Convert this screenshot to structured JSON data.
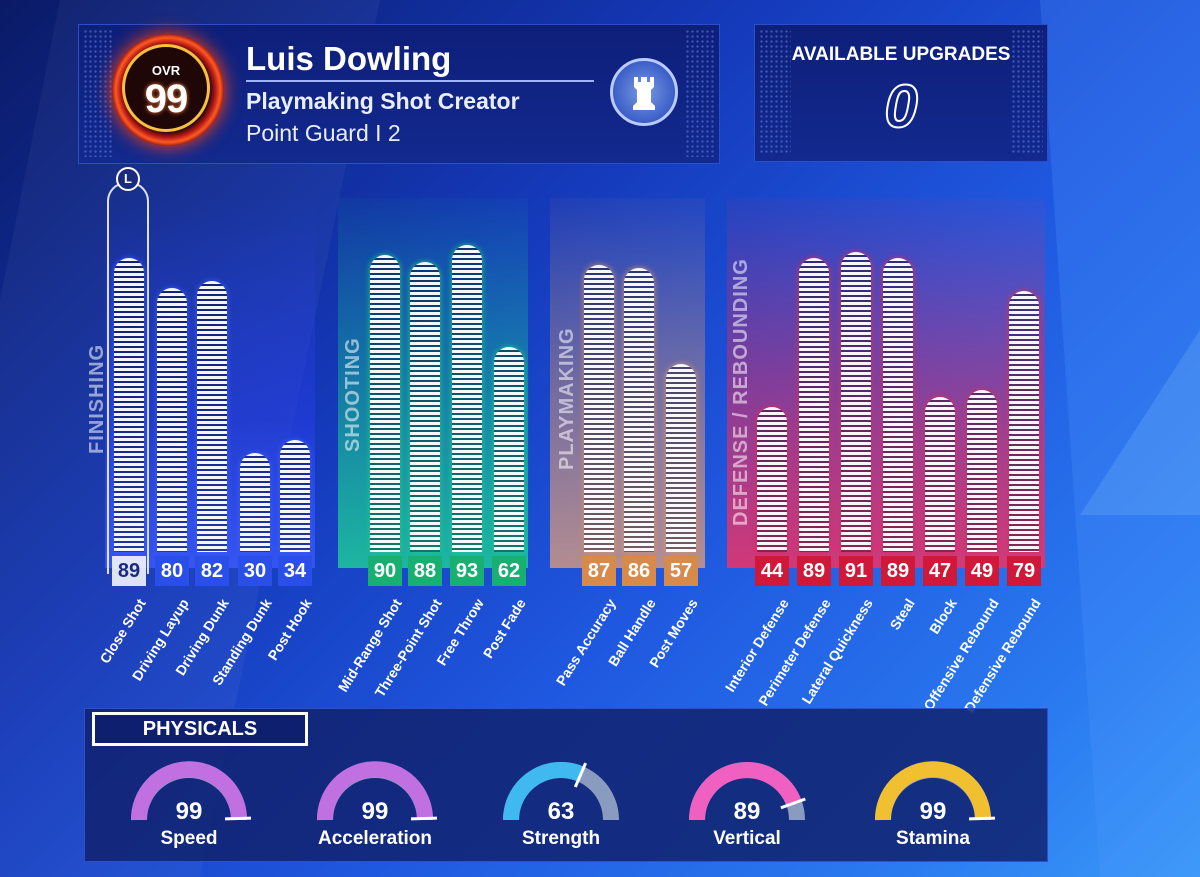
{
  "player": {
    "ovr_label": "OVR",
    "ovr": "99",
    "name": "Luis Dowling",
    "archetype": "Playmaking Shot Creator",
    "position": "Point Guard  I  2",
    "badge_icon": "rook-chess-icon"
  },
  "upgrades": {
    "title": "AVAILABLE UPGRADES",
    "value": "0"
  },
  "categories": [
    {
      "name": "FINISHING",
      "color": "#3a5cff",
      "value_color": "#2a4fe8",
      "attributes": [
        {
          "name": "Close Shot",
          "value": 89
        },
        {
          "name": "Driving Layup",
          "value": 80
        },
        {
          "name": "Driving Dunk",
          "value": 82
        },
        {
          "name": "Standing Dunk",
          "value": 30
        },
        {
          "name": "Post Hook",
          "value": 34
        }
      ]
    },
    {
      "name": "SHOOTING",
      "color": "#1ec88a",
      "value_color": "#18b070",
      "attributes": [
        {
          "name": "Mid-Range Shot",
          "value": 90
        },
        {
          "name": "Three-Point Shot",
          "value": 88
        },
        {
          "name": "Free Throw",
          "value": 93
        },
        {
          "name": "Post Fade",
          "value": 62
        }
      ]
    },
    {
      "name": "PLAYMAKING",
      "color": "#d8946a",
      "value_color": "#d88a4a",
      "attributes": [
        {
          "name": "Pass Accuracy",
          "value": 87
        },
        {
          "name": "Ball Handle",
          "value": 86
        },
        {
          "name": "Post Moves",
          "value": 57
        }
      ]
    },
    {
      "name": "DEFENSE / REBOUNDING",
      "color": "#e0285a",
      "value_color": "#d01838",
      "attributes": [
        {
          "name": "Interior Defense",
          "value": 44
        },
        {
          "name": "Perimeter Defense",
          "value": 89
        },
        {
          "name": "Lateral Quickness",
          "value": 91
        },
        {
          "name": "Steal",
          "value": 89
        },
        {
          "name": "Block",
          "value": 47
        },
        {
          "name": "Offensive Rebound",
          "value": 49
        },
        {
          "name": "Defensive Rebound",
          "value": 79
        }
      ]
    }
  ],
  "selected_badge": "L",
  "physicals": {
    "title": "PHYSICALS",
    "items": [
      {
        "name": "Speed",
        "value": 99,
        "color": "#c070e0"
      },
      {
        "name": "Acceleration",
        "value": 99,
        "color": "#c070e0"
      },
      {
        "name": "Strength",
        "value": 63,
        "color": "#40b8f0"
      },
      {
        "name": "Vertical",
        "value": 89,
        "color": "#f060c0"
      },
      {
        "name": "Stamina",
        "value": 99,
        "color": "#f0c030"
      }
    ]
  }
}
